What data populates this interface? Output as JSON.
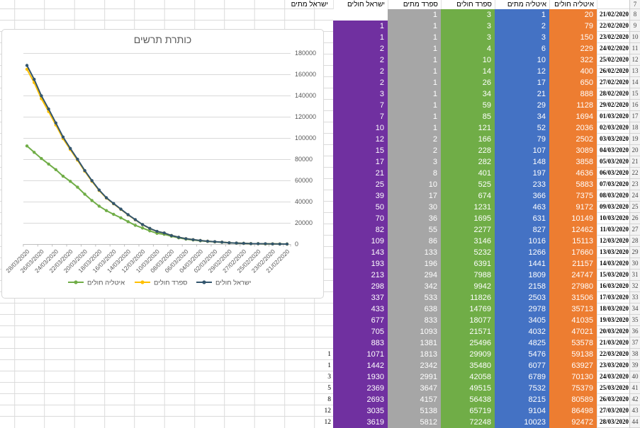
{
  "sheet": {
    "header_row_number": 7,
    "row_numbers": [
      8,
      9,
      10,
      11,
      12,
      13,
      14,
      15,
      16,
      17,
      18,
      19,
      20,
      21,
      22,
      23,
      24,
      25,
      26,
      27,
      28,
      29,
      30,
      31,
      32,
      33,
      34,
      35,
      36,
      37,
      38,
      39,
      40,
      41,
      42,
      43,
      44
    ],
    "headers": {
      "israel_deaths": "ישראל מתים",
      "israel_cases": "ישראל חולים",
      "spain_deaths": "ספרד מתים",
      "spain_cases": "ספרד חולים",
      "italy_deaths": "איטליה מתים",
      "italy_cases": "איטליה חולים"
    },
    "dates": [
      "21/02/2020",
      "22/02/2020",
      "23/02/2020",
      "24/02/2020",
      "25/02/2020",
      "26/02/2020",
      "27/02/2020",
      "28/02/2020",
      "29/02/2020",
      "01/03/2020",
      "02/03/2020",
      "03/03/2020",
      "04/03/2020",
      "05/03/2020",
      "06/03/2020",
      "07/03/2020",
      "08/03/2020",
      "09/03/2020",
      "10/03/2020",
      "11/03/2020",
      "12/03/2020",
      "13/03/2020",
      "14/03/2020",
      "15/03/2020",
      "16/03/2020",
      "17/03/2020",
      "18/03/2020",
      "19/03/2020",
      "20/03/2020",
      "21/03/2020",
      "22/03/2020",
      "23/03/2020",
      "24/03/2020",
      "25/03/2020",
      "26/03/2020",
      "27/03/2020",
      "28/03/2020"
    ],
    "italy_cases": [
      20,
      79,
      150,
      229,
      322,
      400,
      650,
      888,
      1128,
      1694,
      2036,
      2502,
      3089,
      3858,
      4636,
      5883,
      7375,
      9172,
      10149,
      12462,
      15113,
      17660,
      21157,
      24747,
      27980,
      31506,
      35713,
      41035,
      47021,
      53578,
      59138,
      63927,
      70130,
      75379,
      80589,
      86498,
      92472
    ],
    "italy_deaths": [
      1,
      2,
      3,
      6,
      10,
      12,
      17,
      21,
      29,
      34,
      52,
      79,
      107,
      148,
      197,
      233,
      366,
      463,
      631,
      827,
      1016,
      1266,
      1441,
      1809,
      2158,
      2503,
      2978,
      3405,
      4032,
      4825,
      5476,
      6077,
      6789,
      7532,
      8215,
      9104,
      10023
    ],
    "spain_cases": [
      3,
      3,
      3,
      4,
      10,
      14,
      26,
      34,
      59,
      85,
      121,
      166,
      228,
      282,
      401,
      525,
      674,
      1231,
      1695,
      2277,
      3146,
      5232,
      6391,
      7988,
      9942,
      11826,
      14769,
      18077,
      21571,
      25496,
      29909,
      35480,
      42058,
      49515,
      56438,
      65719,
      72248
    ],
    "spain_deaths": [
      1,
      1,
      1,
      1,
      1,
      1,
      1,
      1,
      1,
      1,
      1,
      2,
      2,
      3,
      8,
      10,
      17,
      30,
      36,
      55,
      86,
      133,
      196,
      294,
      342,
      533,
      638,
      833,
      1093,
      1381,
      1813,
      2342,
      2991,
      3647,
      4157,
      5138,
      5812
    ],
    "israel_cases": [
      null,
      1,
      1,
      2,
      2,
      2,
      2,
      3,
      7,
      7,
      10,
      12,
      15,
      17,
      21,
      25,
      39,
      50,
      70,
      82,
      109,
      143,
      193,
      213,
      298,
      337,
      433,
      677,
      705,
      883,
      1071,
      1442,
      1930,
      2369,
      2693,
      3035,
      3619
    ],
    "israel_deaths": [
      null,
      null,
      null,
      null,
      null,
      null,
      null,
      null,
      null,
      null,
      null,
      null,
      null,
      null,
      null,
      null,
      null,
      null,
      null,
      null,
      null,
      null,
      null,
      null,
      null,
      null,
      null,
      null,
      null,
      null,
      1,
      1,
      3,
      5,
      8,
      12,
      12
    ]
  },
  "chart_data": {
    "type": "line",
    "stacked": true,
    "title": "כותרת תרשים",
    "xlabel": "",
    "ylabel": "",
    "ylim": [
      0,
      180000
    ],
    "ytick_step": 20000,
    "gridlines": "horizontal",
    "legend_position": "bottom",
    "x_axis_reversed": true,
    "x": [
      "21/02/2020",
      "22/02/2020",
      "23/02/2020",
      "24/02/2020",
      "25/02/2020",
      "26/02/2020",
      "27/02/2020",
      "28/02/2020",
      "29/02/2020",
      "01/03/2020",
      "02/03/2020",
      "03/03/2020",
      "04/03/2020",
      "05/03/2020",
      "06/03/2020",
      "07/03/2020",
      "08/03/2020",
      "09/03/2020",
      "10/03/2020",
      "11/03/2020",
      "12/03/2020",
      "13/03/2020",
      "14/03/2020",
      "15/03/2020",
      "16/03/2020",
      "17/03/2020",
      "18/03/2020",
      "19/03/2020",
      "20/03/2020",
      "21/03/2020",
      "22/03/2020",
      "23/03/2020",
      "24/03/2020",
      "25/03/2020",
      "26/03/2020",
      "27/03/2020",
      "28/03/2020"
    ],
    "x_tick_labels": [
      "28/03/2020",
      "26/03/2020",
      "24/03/2020",
      "22/03/2020",
      "20/03/2020",
      "18/03/2020",
      "16/03/2020",
      "14/03/2020",
      "12/03/2020",
      "10/03/2020",
      "08/03/2020",
      "06/03/2020",
      "04/03/2020",
      "02/03/2020",
      "29/02/2020",
      "27/02/2020",
      "25/02/2020",
      "23/02/2020",
      "21/02/2020"
    ],
    "series": [
      {
        "name": "איטליה חולים",
        "color": "#70AD47",
        "values": [
          20,
          79,
          150,
          229,
          322,
          400,
          650,
          888,
          1128,
          1694,
          2036,
          2502,
          3089,
          3858,
          4636,
          5883,
          7375,
          9172,
          10149,
          12462,
          15113,
          17660,
          21157,
          24747,
          27980,
          31506,
          35713,
          41035,
          47021,
          53578,
          59138,
          63927,
          70130,
          75379,
          80589,
          86498,
          92472
        ]
      },
      {
        "name": "ספרד חולים",
        "color": "#FFC000",
        "values": [
          3,
          3,
          3,
          4,
          10,
          14,
          26,
          34,
          59,
          85,
          121,
          166,
          228,
          282,
          401,
          525,
          674,
          1231,
          1695,
          2277,
          3146,
          5232,
          6391,
          7988,
          9942,
          11826,
          14769,
          18077,
          21571,
          25496,
          29909,
          35480,
          42058,
          49515,
          56438,
          65719,
          72248
        ]
      },
      {
        "name": "ישראל חולים",
        "color": "#33566E",
        "values": [
          null,
          1,
          1,
          2,
          2,
          2,
          2,
          3,
          7,
          7,
          10,
          12,
          15,
          17,
          21,
          25,
          39,
          50,
          70,
          82,
          109,
          143,
          193,
          213,
          298,
          337,
          433,
          677,
          705,
          883,
          1071,
          1442,
          1930,
          2369,
          2693,
          3035,
          3619
        ]
      }
    ]
  },
  "colors": {
    "israel_cases_fill": "#7030A0",
    "spain_deaths_fill": "#A6A6A6",
    "spain_cases_fill": "#70AD47",
    "italy_deaths_fill": "#4472C4",
    "italy_cases_fill": "#ED7D31",
    "cell_text": "#FFFFFF",
    "gridline": "#DBDBDB",
    "row_gutter_bg": "#F3F3F3",
    "chart_border": "#D7D7D7",
    "axis_text": "#595959"
  }
}
